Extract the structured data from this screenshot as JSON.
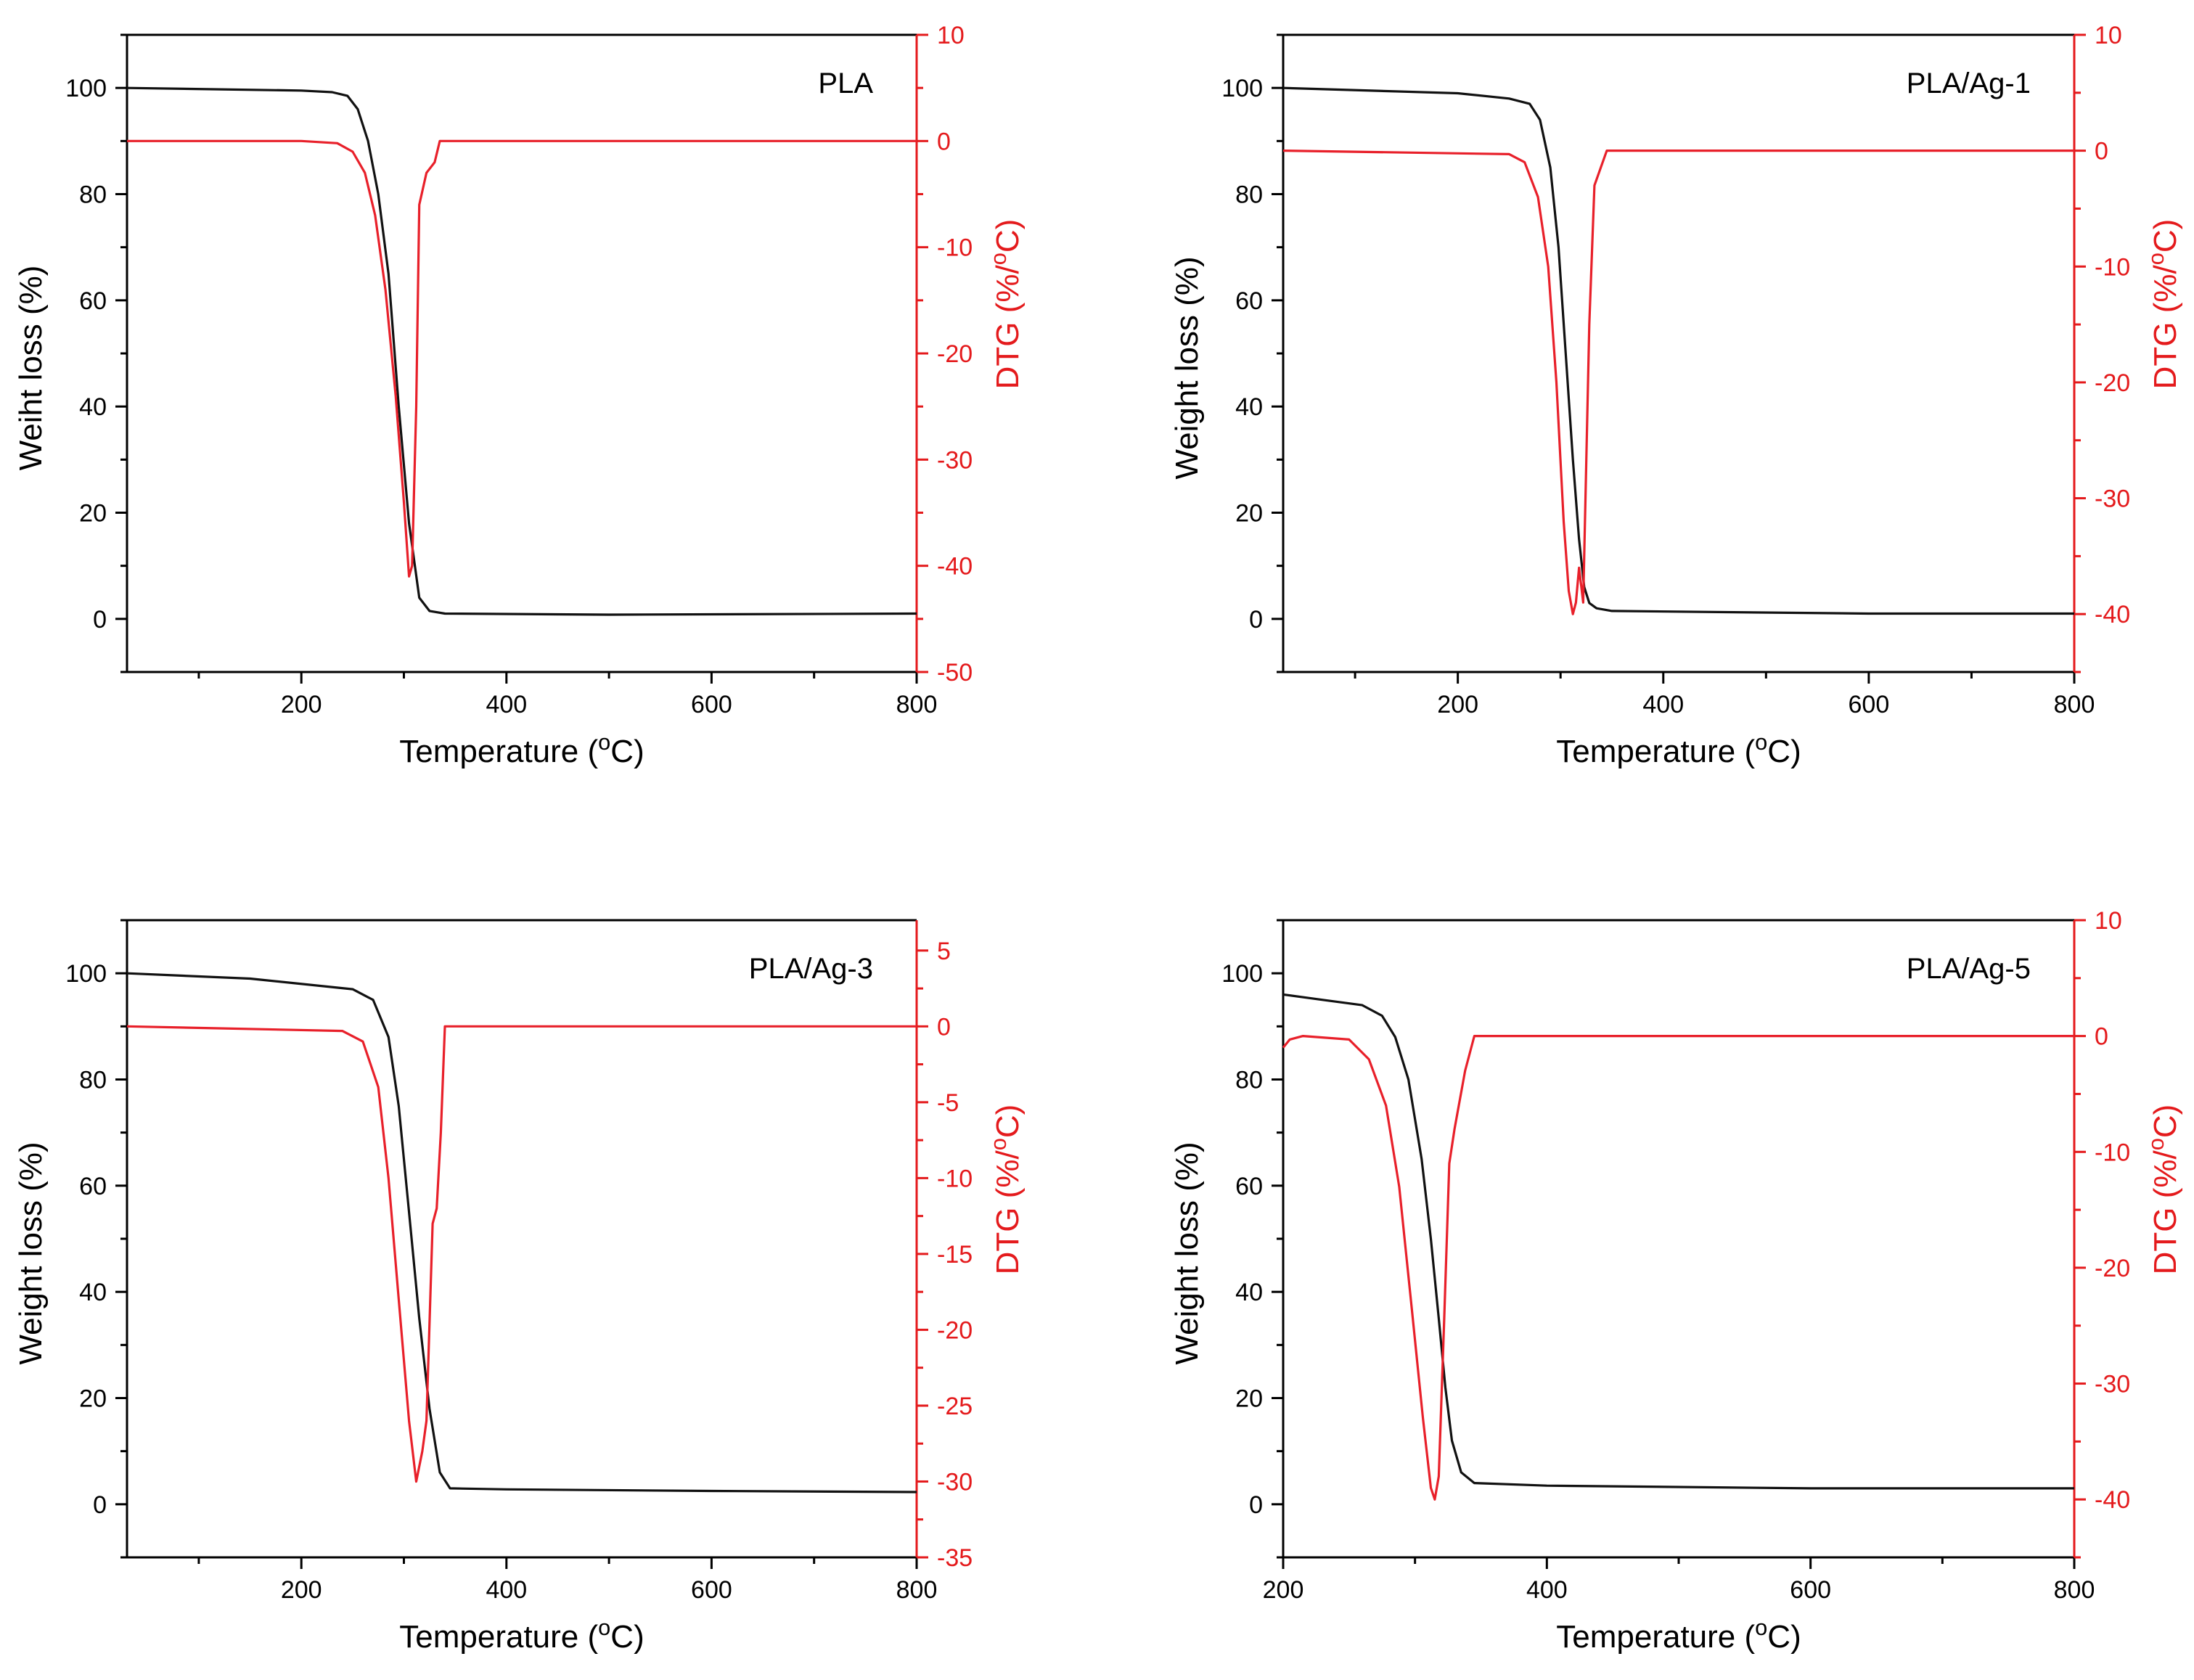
{
  "colors": {
    "weight": "#111111",
    "dtg": "#e8202a",
    "axis": "#000000",
    "dtg_axis": "#e41a1c"
  },
  "chart_data": [
    {
      "type": "line",
      "annotation": "PLA",
      "xlabel": "Temperature (oC)",
      "ylabel": "Weiht loss (%)",
      "y2label": "DTG (%/oC)",
      "xlim": [
        30,
        800
      ],
      "ylim": [
        -10,
        110
      ],
      "y2lim": [
        -50,
        10
      ],
      "xticks": [
        200,
        400,
        600,
        800
      ],
      "yticks": [
        0,
        20,
        40,
        60,
        80,
        100
      ],
      "y2ticks": [
        10,
        0,
        -10,
        -20,
        -30,
        -40,
        -50
      ],
      "series": [
        {
          "name": "Weight loss",
          "axis": "y",
          "x": [
            30,
            200,
            230,
            245,
            255,
            265,
            275,
            285,
            295,
            305,
            315,
            325,
            340,
            500,
            800
          ],
          "values": [
            100,
            99.5,
            99.2,
            98.5,
            96,
            90,
            80,
            65,
            40,
            18,
            4,
            1.5,
            1,
            0.8,
            1
          ]
        },
        {
          "name": "DTG",
          "axis": "y2",
          "x": [
            30,
            200,
            235,
            250,
            262,
            272,
            282,
            292,
            300,
            305,
            308,
            312,
            315,
            322,
            330,
            335,
            500,
            800
          ],
          "values": [
            0,
            0,
            -0.2,
            -1,
            -3,
            -7,
            -14,
            -24,
            -34,
            -41,
            -40,
            -25,
            -6,
            -3,
            -2,
            0,
            0,
            0
          ]
        }
      ]
    },
    {
      "type": "line",
      "annotation": "PLA/Ag-1",
      "xlabel": "Temperature (oC)",
      "ylabel": "Weight loss (%)",
      "y2label": "DTG (%/oC)",
      "xlim": [
        30,
        800
      ],
      "ylim": [
        -10,
        110
      ],
      "y2lim": [
        -45,
        10
      ],
      "xticks": [
        200,
        400,
        600,
        800
      ],
      "yticks": [
        0,
        20,
        40,
        60,
        80,
        100
      ],
      "y2ticks": [
        10,
        0,
        -10,
        -20,
        -30,
        -40
      ],
      "series": [
        {
          "name": "Weight loss",
          "axis": "y",
          "x": [
            30,
            200,
            250,
            270,
            280,
            290,
            298,
            305,
            312,
            318,
            323,
            328,
            335,
            350,
            600,
            800
          ],
          "values": [
            100,
            99,
            98,
            97,
            94,
            85,
            70,
            50,
            30,
            15,
            6,
            3,
            2,
            1.5,
            1,
            1
          ]
        },
        {
          "name": "DTG",
          "axis": "y2",
          "x": [
            30,
            250,
            265,
            278,
            288,
            296,
            303,
            308,
            312,
            315,
            318,
            322,
            328,
            333,
            345,
            800
          ],
          "values": [
            0,
            -0.3,
            -1,
            -4,
            -10,
            -20,
            -32,
            -38,
            -40,
            -39,
            -36,
            -39,
            -15,
            -3,
            0,
            0
          ]
        }
      ]
    },
    {
      "type": "line",
      "annotation": "PLA/Ag-3",
      "xlabel": "Temperature (oC)",
      "ylabel": "Weight loss (%)",
      "y2label": "DTG (%/oC)",
      "xlim": [
        30,
        800
      ],
      "ylim": [
        -10,
        110
      ],
      "y2lim": [
        -35,
        7
      ],
      "xticks": [
        200,
        400,
        600,
        800
      ],
      "yticks": [
        0,
        20,
        40,
        60,
        80,
        100
      ],
      "y2ticks": [
        5,
        0,
        -5,
        -10,
        -15,
        -20,
        -25,
        -30,
        -35
      ],
      "series": [
        {
          "name": "Weight loss",
          "axis": "y",
          "x": [
            30,
            150,
            250,
            270,
            285,
            295,
            305,
            315,
            325,
            335,
            345,
            400,
            600,
            800
          ],
          "values": [
            100,
            99,
            97,
            95,
            88,
            75,
            55,
            35,
            18,
            6,
            3,
            2.8,
            2.5,
            2.3
          ]
        },
        {
          "name": "DTG",
          "axis": "y2",
          "x": [
            30,
            240,
            260,
            275,
            285,
            295,
            305,
            312,
            318,
            322,
            328,
            332,
            336,
            340,
            350,
            800
          ],
          "values": [
            0,
            -0.3,
            -1,
            -4,
            -10,
            -18,
            -26,
            -30,
            -28,
            -26,
            -13,
            -12,
            -7,
            0,
            0,
            0
          ]
        }
      ]
    },
    {
      "type": "line",
      "annotation": "PLA/Ag-5",
      "xlabel": "Temperature (oC)",
      "ylabel": "Weight loss (%)",
      "y2label": "DTG (%/oC)",
      "xlim": [
        200,
        800
      ],
      "ylim": [
        -10,
        110
      ],
      "y2lim": [
        -45,
        10
      ],
      "xticks": [
        200,
        400,
        600,
        800
      ],
      "yticks": [
        0,
        20,
        40,
        60,
        80,
        100
      ],
      "y2ticks": [
        10,
        0,
        -10,
        -20,
        -30,
        -40
      ],
      "series": [
        {
          "name": "Weight loss",
          "axis": "y",
          "x": [
            200,
            230,
            260,
            275,
            285,
            295,
            305,
            312,
            318,
            323,
            328,
            335,
            345,
            400,
            600,
            800
          ],
          "values": [
            96,
            95,
            94,
            92,
            88,
            80,
            65,
            50,
            35,
            22,
            12,
            6,
            4,
            3.5,
            3,
            3
          ]
        },
        {
          "name": "DTG",
          "axis": "y2",
          "x": [
            200,
            205,
            215,
            250,
            265,
            278,
            288,
            298,
            306,
            312,
            315,
            318,
            322,
            326,
            330,
            338,
            345,
            350,
            800
          ],
          "values": [
            -1,
            -0.3,
            0,
            -0.3,
            -2,
            -6,
            -13,
            -24,
            -33,
            -39,
            -40,
            -38,
            -25,
            -11,
            -8,
            -3,
            0,
            0,
            0
          ]
        }
      ]
    }
  ]
}
